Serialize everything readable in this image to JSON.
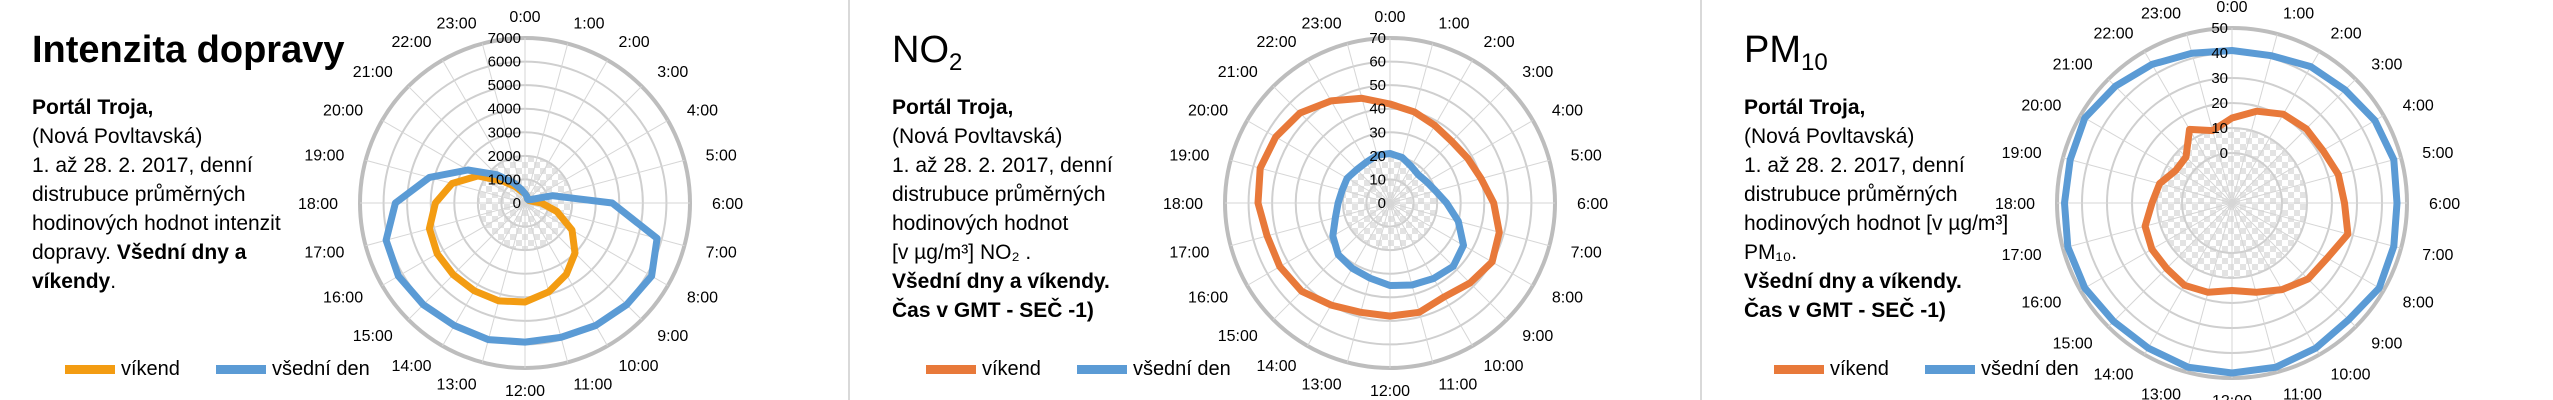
{
  "colors": {
    "vikend": "#f39c12",
    "vikend2": "#e8793a",
    "vsedni": "#5b9bd5",
    "grid": "#c9c9c9",
    "outer": "#bdbdbd"
  },
  "hours": [
    "1:00",
    "2:00",
    "3:00",
    "4:00",
    "5:00",
    "6:00",
    "7:00",
    "8:00",
    "9:00",
    "10:00",
    "11:00",
    "12:00",
    "13:00",
    "14:00",
    "15:00",
    "16:00",
    "17:00",
    "18:00",
    "19:00",
    "20:00",
    "21:00",
    "22:00",
    "23:00",
    "0:00"
  ],
  "panels": [
    {
      "title": "Intenzita dopravy",
      "subscript": "",
      "desc_bold1": "Portál Troja,",
      "desc_line2": "(Nová Povltavská)",
      "desc_line3": "1. až 28. 2. 2017, denní distrubuce průměrných hodinových hodnot intenzit dopravy.",
      "desc_bold2": "Všední dny a víkendy",
      "desc_tail": ".",
      "desc_line5": "",
      "desc_bold3": ""
    },
    {
      "title": "NO",
      "subscript": "2",
      "desc_bold1": "Portál Troja,",
      "desc_line2": "(Nová Povltavská)",
      "desc_line3": "1. až 28. 2. 2017, denní distrubuce průměrných hodinových hodnot",
      "desc_line5": "[v µg/m³] NO₂ .",
      "desc_bold2": "Všední dny a víkendy.",
      "desc_bold3": "Čas v GMT - SEČ -1)",
      "desc_tail": ""
    },
    {
      "title": "PM",
      "subscript": "10",
      "desc_bold1": "Portál Troja,",
      "desc_line2": "(Nová Povltavská)",
      "desc_line3": "1. až 28. 2. 2017, denní distrubuce průměrných hodinových hodnot  [v µg/m³] PM₁₀.",
      "desc_line5": "",
      "desc_bold2": "Všední dny a víkendy.",
      "desc_bold3": "Čas v GMT - SEČ -1)",
      "desc_tail": ""
    }
  ],
  "legend": {
    "vikend": "víkend",
    "vsedni": "všední den"
  },
  "chart_data": [
    {
      "type": "radar",
      "title": "Intenzita dopravy",
      "categories": [
        "1:00",
        "2:00",
        "3:00",
        "4:00",
        "5:00",
        "6:00",
        "7:00",
        "8:00",
        "9:00",
        "10:00",
        "11:00",
        "12:00",
        "13:00",
        "14:00",
        "15:00",
        "16:00",
        "17:00",
        "18:00",
        "19:00",
        "20:00",
        "21:00",
        "22:00",
        "23:00",
        "0:00"
      ],
      "ticks": [
        0,
        1000,
        2000,
        3000,
        4000,
        5000,
        6000,
        7000
      ],
      "ylim": [
        0,
        7000
      ],
      "series": [
        {
          "name": "víkend",
          "color": "#f39c12",
          "values": [
            300,
            200,
            200,
            200,
            300,
            700,
            1400,
            2300,
            3000,
            3500,
            3900,
            4200,
            4300,
            4300,
            4300,
            4300,
            4200,
            3800,
            3200,
            2300,
            1300,
            800,
            500,
            400
          ]
        },
        {
          "name": "všední den",
          "color": "#5b9bd5",
          "values": [
            300,
            200,
            200,
            300,
            1200,
            3700,
            5800,
            6200,
            6100,
            6000,
            5900,
            5900,
            6000,
            6000,
            6100,
            6200,
            6100,
            5500,
            4200,
            2800,
            1700,
            1000,
            600,
            400
          ]
        }
      ]
    },
    {
      "type": "radar",
      "title": "NO2",
      "categories": [
        "1:00",
        "2:00",
        "3:00",
        "4:00",
        "5:00",
        "6:00",
        "7:00",
        "8:00",
        "9:00",
        "10:00",
        "11:00",
        "12:00",
        "13:00",
        "14:00",
        "15:00",
        "16:00",
        "17:00",
        "18:00",
        "19:00",
        "20:00",
        "21:00",
        "22:00",
        "23:00",
        "0:00"
      ],
      "ticks": [
        0,
        10,
        20,
        30,
        40,
        50,
        60,
        70
      ],
      "ylim": [
        0,
        70
      ],
      "series": [
        {
          "name": "víkend",
          "color": "#e8793a",
          "values": [
            40,
            38,
            37,
            38,
            40,
            44,
            48,
            50,
            48,
            46,
            48,
            48,
            48,
            50,
            53,
            54,
            54,
            56,
            57,
            56,
            54,
            50,
            46,
            42
          ]
        },
        {
          "name": "všední den",
          "color": "#5b9bd5",
          "values": [
            20,
            18,
            17,
            18,
            20,
            24,
            30,
            36,
            38,
            37,
            36,
            35,
            33,
            32,
            31,
            28,
            24,
            22,
            21,
            21,
            20,
            20,
            21,
            21
          ]
        }
      ]
    },
    {
      "type": "radar",
      "title": "PM10",
      "categories": [
        "1:00",
        "2:00",
        "3:00",
        "4:00",
        "5:00",
        "6:00",
        "7:00",
        "8:00",
        "9:00",
        "10:00",
        "11:00",
        "12:00",
        "13:00",
        "14:00",
        "15:00",
        "16:00",
        "17:00",
        "18:00",
        "19:00",
        "20:00",
        "21:00",
        "22:00",
        "23:00",
        "0:00"
      ],
      "ticks": [
        0,
        10,
        20,
        30,
        40,
        50
      ],
      "ylim": [
        -20,
        50
      ],
      "series": [
        {
          "name": "víkend",
          "color": "#e8793a",
          "values": [
            18,
            21,
            22,
            22,
            24,
            25,
            28,
            24,
            23,
            20,
            17,
            15,
            17,
            18,
            17,
            17,
            16,
            12,
            10,
            6,
            6,
            14,
            10,
            14
          ]
        },
        {
          "name": "všední den",
          "color": "#5b9bd5",
          "values": [
            41,
            43,
            44,
            46,
            47,
            46,
            47,
            48,
            46,
            47,
            48,
            48,
            48,
            47,
            47,
            48,
            48,
            47,
            47,
            48,
            46,
            44,
            42,
            41
          ]
        }
      ]
    }
  ]
}
